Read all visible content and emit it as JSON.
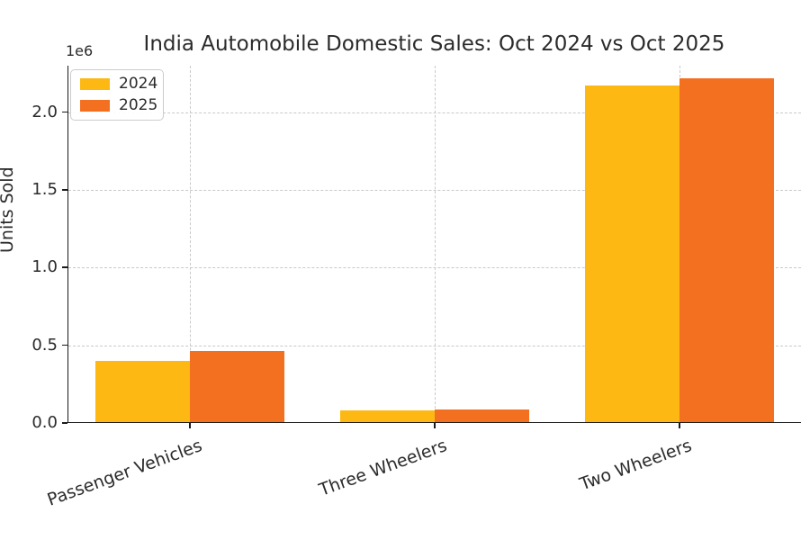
{
  "title": "India Automobile Domestic Sales: Oct 2024 vs Oct 2025",
  "chart_data": {
    "type": "bar",
    "title": "India Automobile Domestic Sales: Oct 2024 vs Oct 2025",
    "xlabel": "",
    "ylabel": "Units Sold",
    "y_offset_text": "1e6",
    "categories": [
      "Passenger Vehicles",
      "Three Wheelers",
      "Two Wheelers"
    ],
    "series": [
      {
        "name": "2024",
        "color": "#FDB813",
        "values": [
          393000,
          77000,
          2165000
        ]
      },
      {
        "name": "2025",
        "color": "#F37021",
        "values": [
          460000,
          80000,
          2215000
        ]
      }
    ],
    "ylim": [
      0,
      2300000
    ],
    "yticks": [
      0,
      500000,
      1000000,
      1500000,
      2000000
    ],
    "ytick_labels": [
      "0.0",
      "0.5",
      "1.0",
      "1.5",
      "2.0"
    ],
    "grid": true,
    "grid_style": "dashed",
    "legend_position": "upper left",
    "xtick_rotation_deg": 20
  }
}
